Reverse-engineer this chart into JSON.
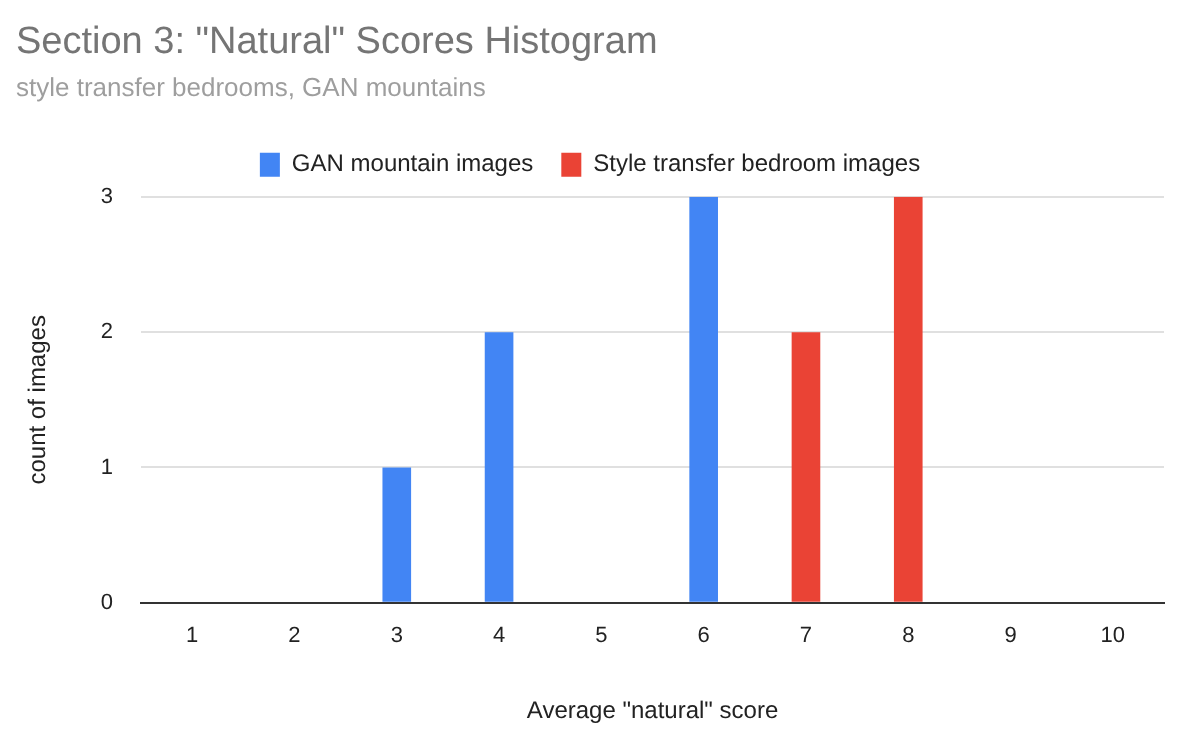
{
  "chart_data": {
    "type": "bar",
    "title": "Section 3: \"Natural\" Scores Histogram",
    "subtitle": "style transfer bedrooms, GAN mountains",
    "xlabel": "Average \"natural\" score",
    "ylabel": "count of images",
    "categories": [
      "1",
      "2",
      "3",
      "4",
      "5",
      "6",
      "7",
      "8",
      "9",
      "10"
    ],
    "series": [
      {
        "name": "GAN mountain images",
        "color": "#4285f4",
        "values": [
          null,
          null,
          1,
          2,
          null,
          3,
          null,
          null,
          null,
          null
        ]
      },
      {
        "name": "Style transfer bedroom images",
        "color": "#ea4335",
        "values": [
          null,
          null,
          null,
          null,
          null,
          null,
          2,
          3,
          null,
          null
        ]
      }
    ],
    "ylim": [
      0,
      3
    ],
    "yticks": [
      0,
      1,
      2,
      3
    ],
    "grid": "y",
    "legend": "top"
  }
}
